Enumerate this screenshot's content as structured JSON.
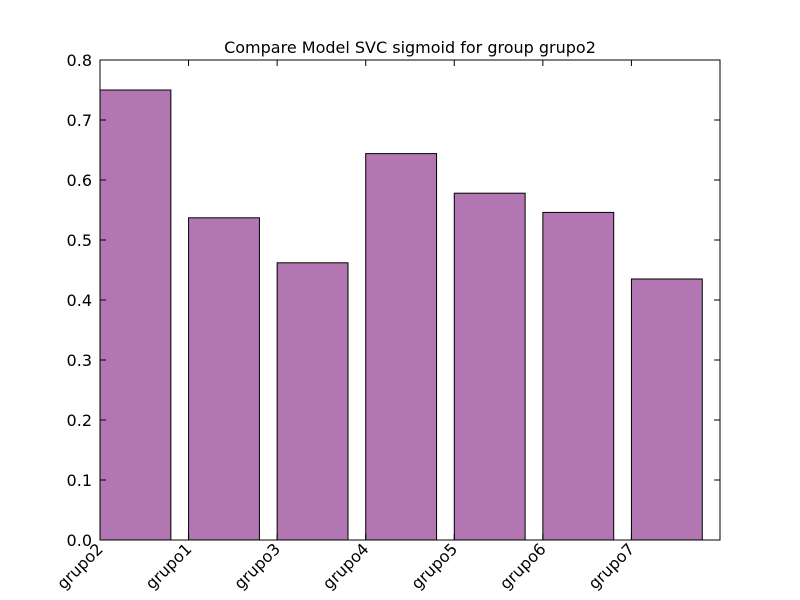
{
  "chart_data": {
    "type": "bar",
    "title": "Compare Model SVC sigmoid for group grupo2",
    "xlabel": "",
    "ylabel": "",
    "categories": [
      "grupo2",
      "grupo1",
      "grupo3",
      "grupo4",
      "grupo5",
      "grupo6",
      "grupo7"
    ],
    "values": [
      0.75,
      0.537,
      0.462,
      0.644,
      0.578,
      0.546,
      0.435
    ],
    "ylim": [
      0,
      0.8
    ],
    "yticks": [
      "0.0",
      "0.1",
      "0.2",
      "0.3",
      "0.4",
      "0.5",
      "0.6",
      "0.7",
      "0.8"
    ],
    "grid": false,
    "legend": "none",
    "bar_color": "#b276b2",
    "edge_color": "#000000"
  }
}
